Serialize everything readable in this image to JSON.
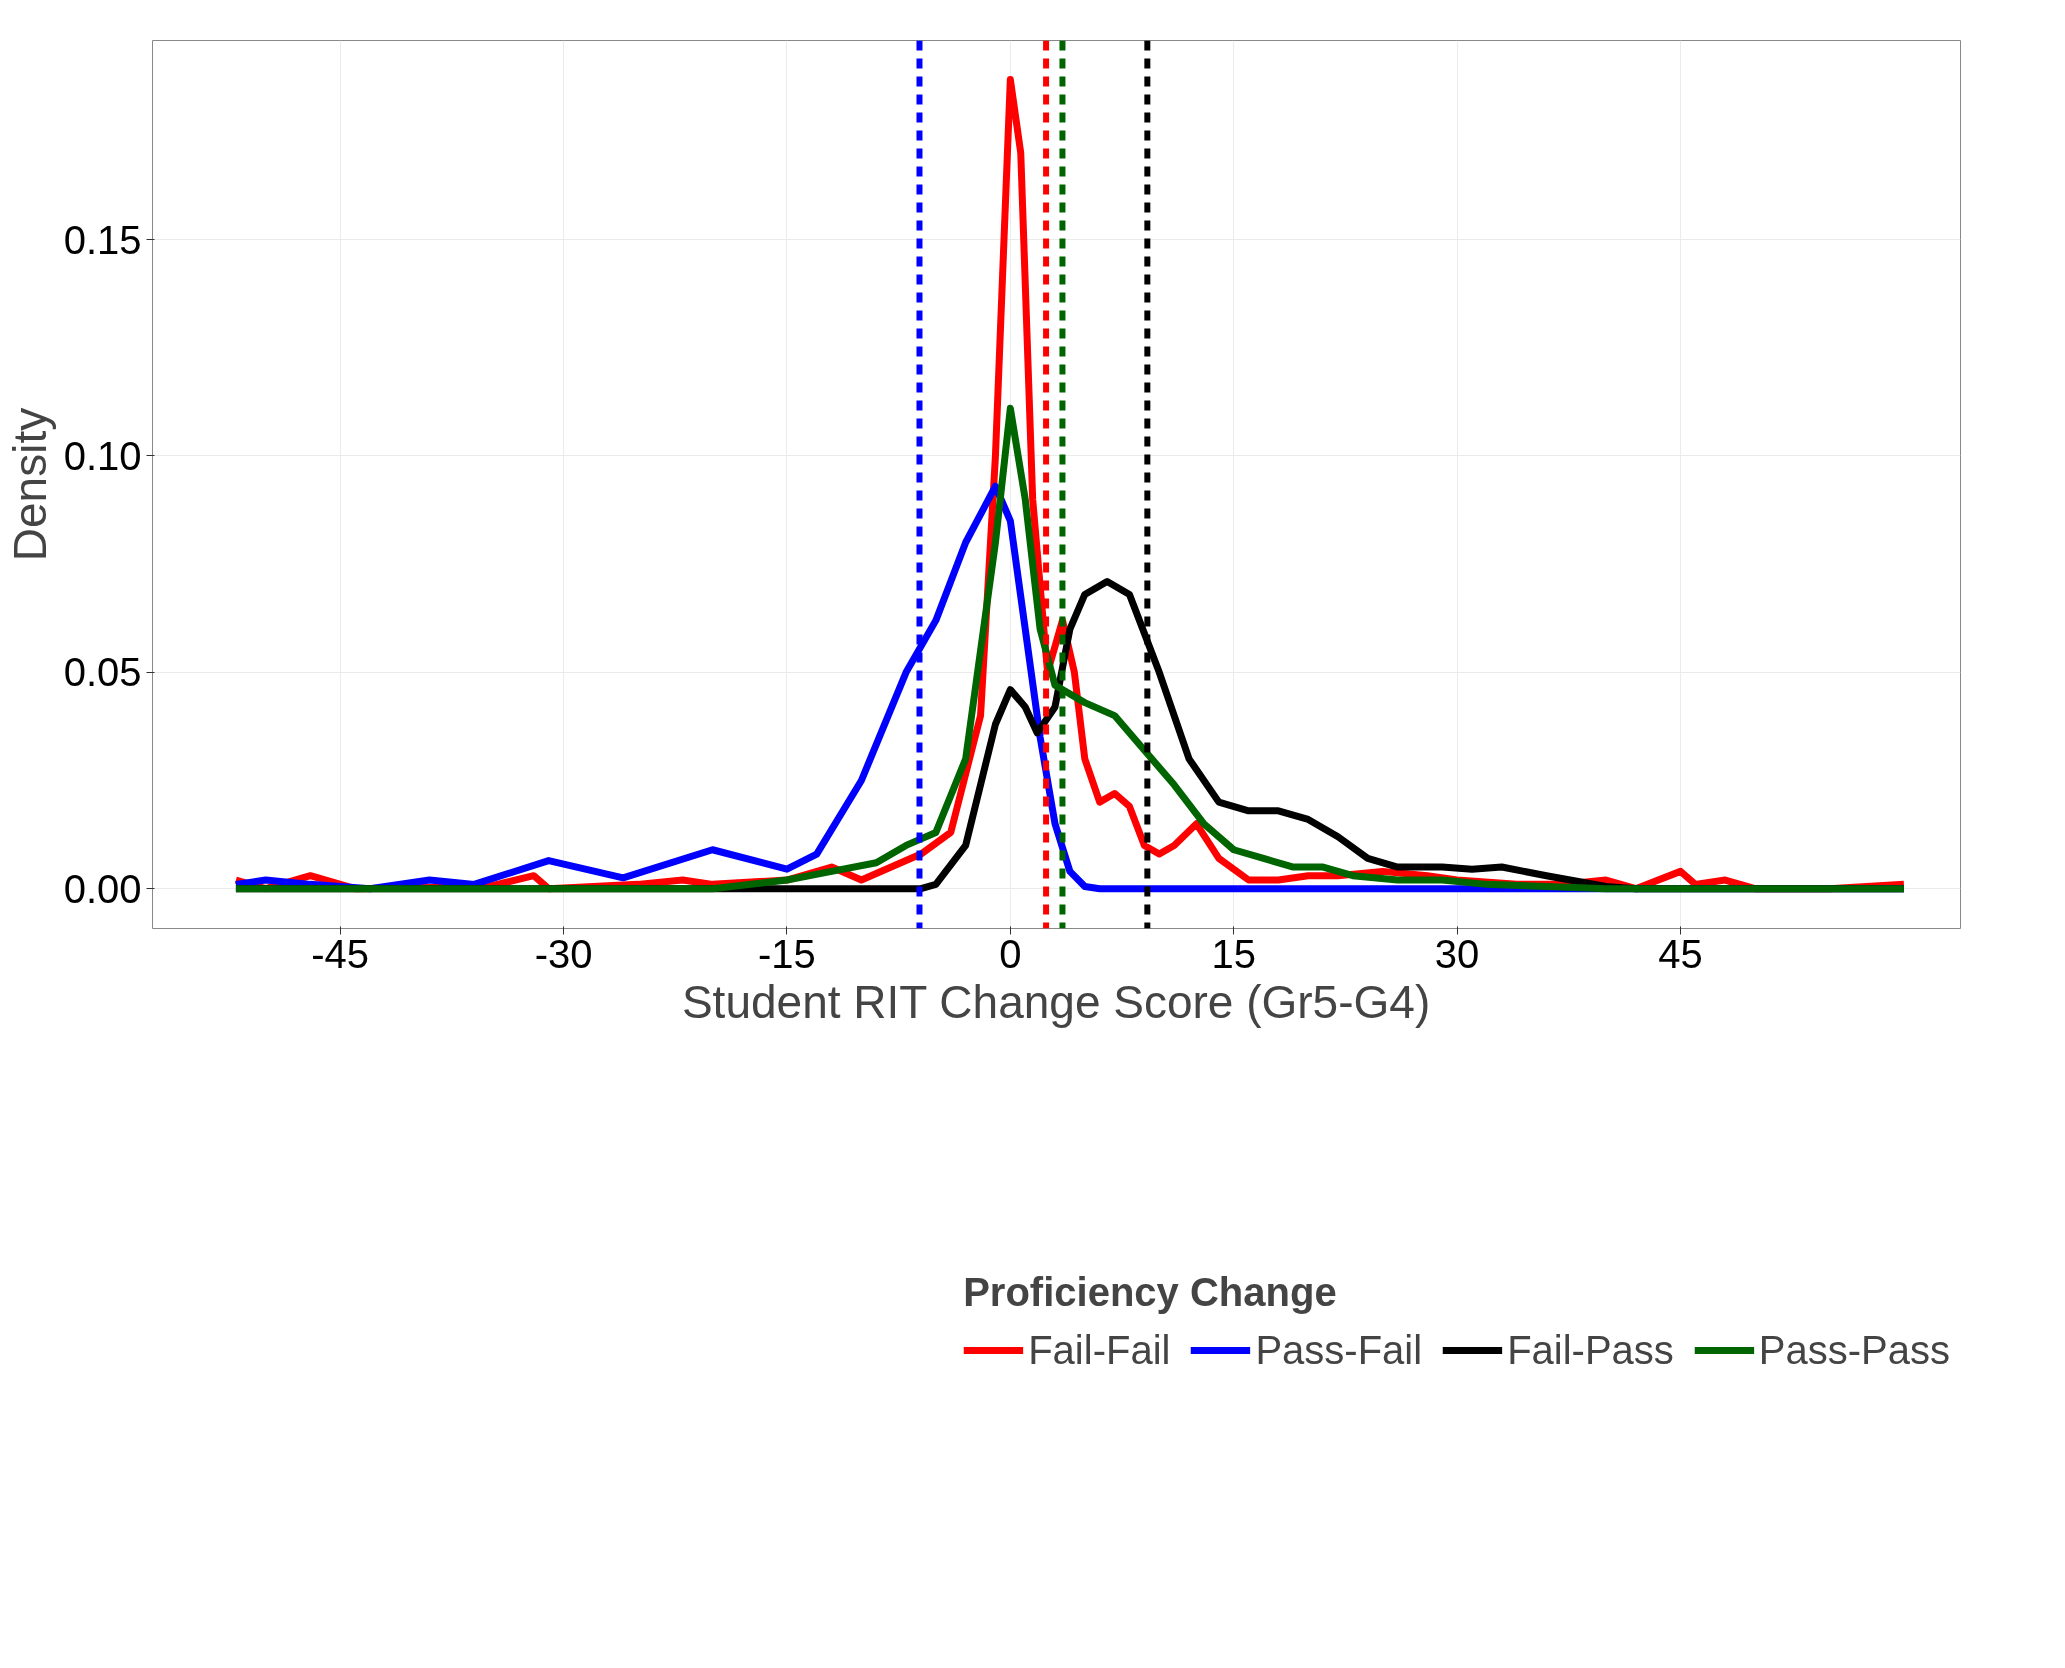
{
  "chart_data": {
    "type": "line",
    "xlabel": "Student RIT Change Score (Gr5-G4)",
    "ylabel": "Density",
    "legend_title": "Proficiency Change",
    "legend": "bottom",
    "grid": true,
    "line_style": "solid",
    "marker": "none",
    "xlim": [
      -57.6,
      63.8
    ],
    "xticks": [
      -45,
      -30,
      -15,
      0,
      15,
      30,
      45
    ],
    "ylim": [
      -0.0092,
      0.196
    ],
    "yticks": [
      {
        "value": 0,
        "label": "0.00"
      },
      {
        "value": 0.05,
        "label": "0.05"
      },
      {
        "value": 0.1,
        "label": "0.10"
      },
      {
        "value": 0.15,
        "label": "0.15"
      }
    ],
    "series": [
      {
        "name": "Fail-Fail",
        "color": "#ff0000",
        "x": [
          -52,
          -50,
          -47,
          -44,
          -35,
          -32,
          -31,
          -25,
          -22,
          -20,
          -15,
          -12,
          -10,
          -8,
          -6,
          -4,
          -2,
          -1,
          0,
          0.7,
          1.5,
          2.5,
          3.5,
          4.3,
          5,
          6,
          7,
          8,
          9,
          10,
          11,
          12.5,
          14,
          16,
          18,
          20,
          22,
          25,
          28,
          30,
          34,
          37,
          40,
          42,
          45,
          46,
          48,
          50,
          55,
          60
        ],
        "values": [
          0.002,
          0,
          0.003,
          0,
          0.0005,
          0.003,
          0,
          0.001,
          0.002,
          0.001,
          0.002,
          0.005,
          0.002,
          0.005,
          0.008,
          0.013,
          0.04,
          0.1,
          0.187,
          0.17,
          0.09,
          0.05,
          0.062,
          0.05,
          0.03,
          0.02,
          0.022,
          0.019,
          0.01,
          0.008,
          0.01,
          0.015,
          0.007,
          0.002,
          0.002,
          0.003,
          0.003,
          0.004,
          0.003,
          0.002,
          0.001,
          0.001,
          0.002,
          0,
          0.004,
          0.001,
          0.002,
          0,
          0,
          0.001
        ]
      },
      {
        "name": "Pass-Fail",
        "color": "#0000ff",
        "x": [
          -52,
          -50,
          -47,
          -43,
          -39,
          -36,
          -31,
          -26,
          -20,
          -15,
          -13,
          -10,
          -7,
          -5,
          -3,
          -1,
          0,
          1,
          2,
          3,
          4,
          5,
          6,
          60
        ],
        "values": [
          0.001,
          0.002,
          0.001,
          0,
          0.002,
          0.001,
          0.0065,
          0.0025,
          0.009,
          0.0045,
          0.008,
          0.025,
          0.05,
          0.062,
          0.08,
          0.093,
          0.085,
          0.06,
          0.035,
          0.015,
          0.004,
          0.0005,
          0,
          0
        ]
      },
      {
        "name": "Fail-Pass",
        "color": "#000000",
        "x": [
          -52,
          -6,
          -5,
          -3,
          -1,
          0,
          1,
          1.8,
          3,
          4,
          5,
          6.5,
          8,
          10,
          12,
          14,
          16,
          18,
          20,
          22,
          24,
          26,
          29,
          31,
          33,
          36,
          40,
          42,
          60
        ],
        "values": [
          0,
          0,
          0.001,
          0.01,
          0.038,
          0.046,
          0.042,
          0.036,
          0.042,
          0.06,
          0.068,
          0.071,
          0.068,
          0.05,
          0.03,
          0.02,
          0.018,
          0.018,
          0.016,
          0.012,
          0.007,
          0.005,
          0.005,
          0.0045,
          0.005,
          0.003,
          0.0005,
          0,
          0
        ]
      },
      {
        "name": "Pass-Pass",
        "color": "#006400",
        "x": [
          -52,
          -20,
          -15,
          -12,
          -9,
          -7,
          -5,
          -3,
          -1,
          0,
          1,
          2,
          3,
          5,
          7,
          9,
          11,
          13,
          15,
          17,
          19,
          21,
          23,
          26,
          29,
          32,
          36,
          40,
          60
        ],
        "values": [
          0,
          0,
          0.002,
          0.004,
          0.006,
          0.01,
          0.013,
          0.03,
          0.08,
          0.111,
          0.09,
          0.06,
          0.047,
          0.043,
          0.04,
          0.032,
          0.024,
          0.015,
          0.009,
          0.007,
          0.005,
          0.005,
          0.003,
          0.002,
          0.002,
          0.001,
          0.0005,
          0,
          0
        ]
      }
    ],
    "ref_lines": [
      {
        "axis": "x",
        "value": -6.1,
        "color": "#0000ff",
        "line_style": "dashed"
      },
      {
        "axis": "x",
        "value": 2.4,
        "color": "#ff0000",
        "line_style": "dashed"
      },
      {
        "axis": "x",
        "value": 3.5,
        "color": "#006400",
        "line_style": "dashed"
      },
      {
        "axis": "x",
        "value": 9.2,
        "color": "#000000",
        "line_style": "dashed"
      }
    ]
  }
}
